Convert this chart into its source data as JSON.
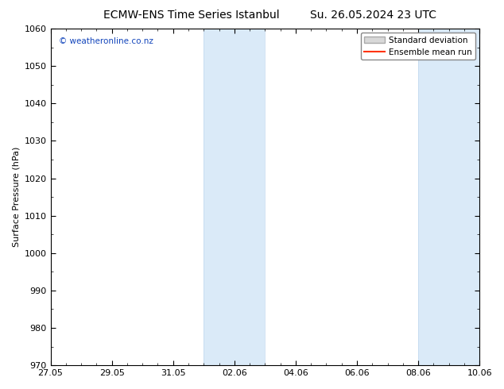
{
  "title_left": "ECMW-ENS Time Series Istanbul",
  "title_right": "Su. 26.05.2024 23 UTC",
  "ylabel": "Surface Pressure (hPa)",
  "ylim": [
    970,
    1060
  ],
  "yticks": [
    970,
    980,
    990,
    1000,
    1010,
    1020,
    1030,
    1040,
    1050,
    1060
  ],
  "x_start_days": 0,
  "x_end_days": 14,
  "xtick_labels": [
    "27.05",
    "29.05",
    "31.05",
    "02.06",
    "04.06",
    "06.06",
    "08.06",
    "10.06"
  ],
  "xtick_positions_days": [
    0,
    2,
    4,
    6,
    8,
    10,
    12,
    14
  ],
  "shaded_regions": [
    {
      "x_start_days": 5,
      "x_end_days": 7
    },
    {
      "x_start_days": 12,
      "x_end_days": 14
    }
  ],
  "shaded_color": "#daeaf8",
  "shaded_edgecolor": "#c0d8ee",
  "watermark_text": "© weatheronline.co.nz",
  "watermark_color": "#1144bb",
  "legend_sd_facecolor": "#d8d8d8",
  "legend_sd_edgecolor": "#aaaaaa",
  "legend_line_color": "#ff3300",
  "background_color": "#ffffff",
  "plot_bg_color": "#ffffff",
  "title_fontsize": 10,
  "axis_label_fontsize": 8,
  "tick_fontsize": 8,
  "legend_fontsize": 7.5,
  "watermark_fontsize": 7.5
}
